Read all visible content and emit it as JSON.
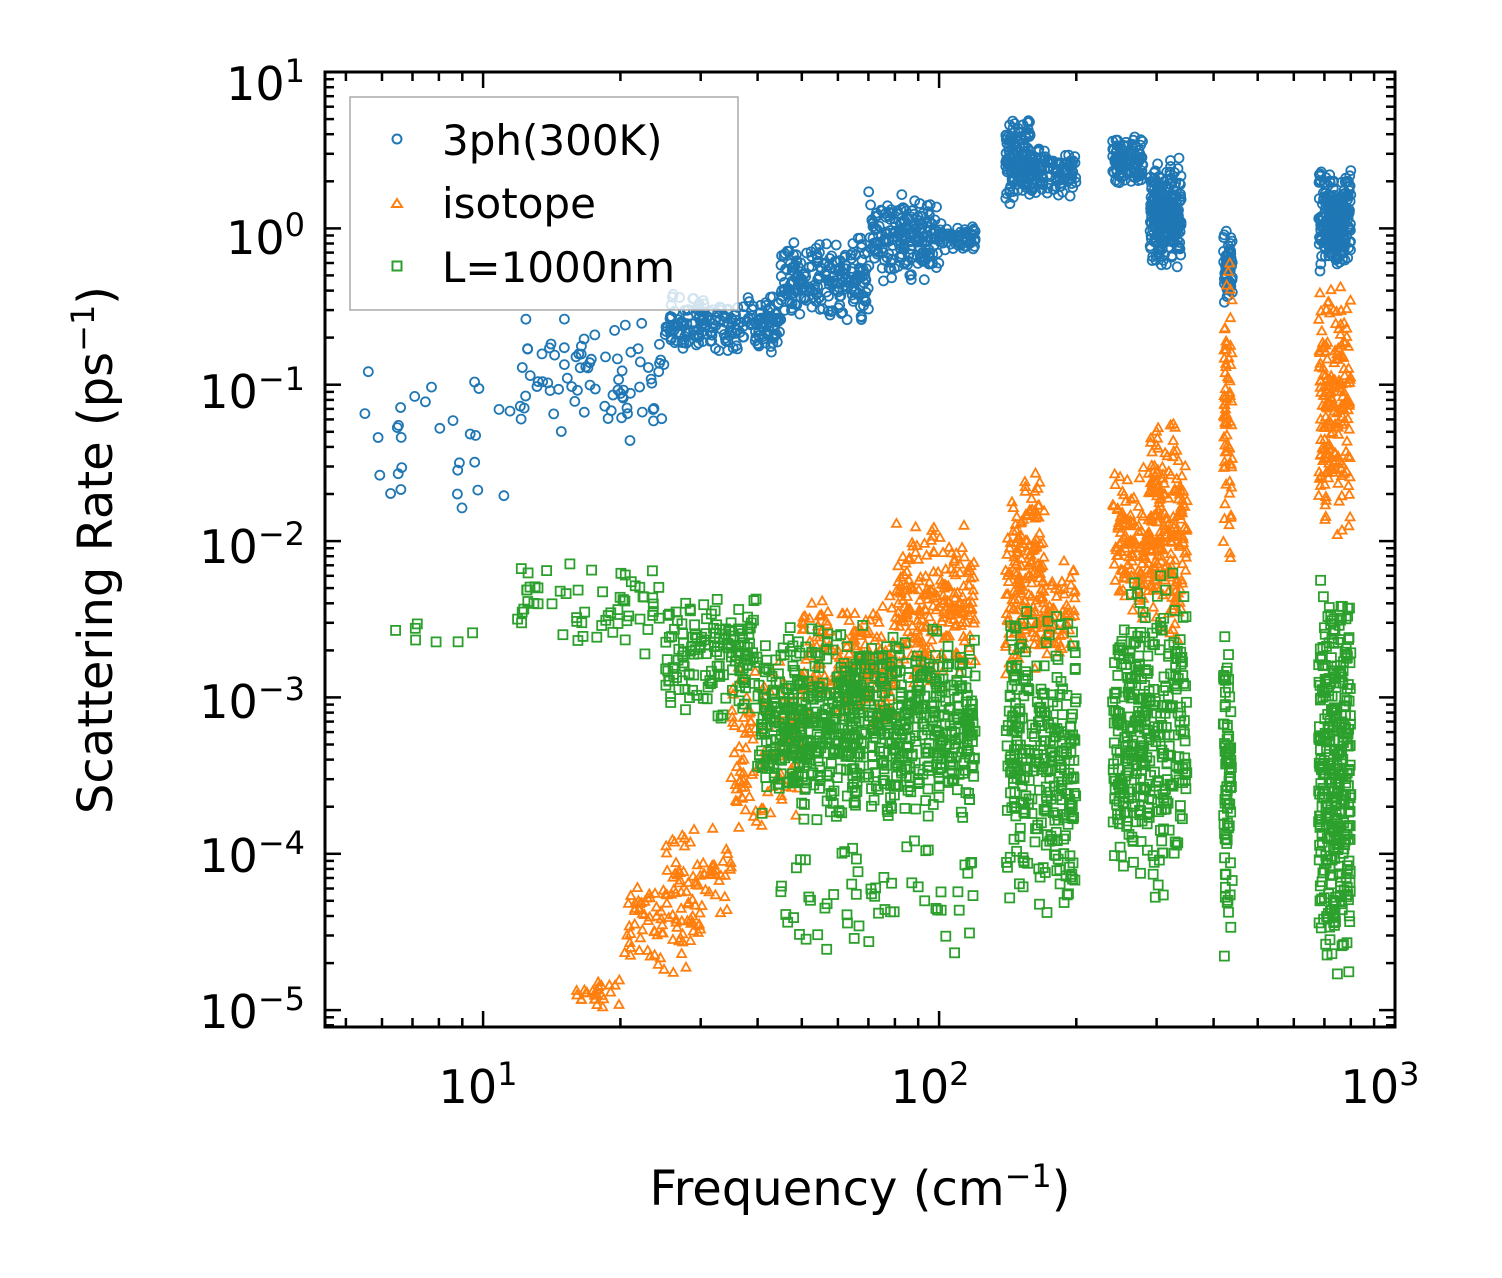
{
  "chart_data": {
    "type": "scatter",
    "x_scale": "log",
    "y_scale": "log",
    "xlim": [
      4.5,
      1000
    ],
    "ylim": [
      7.8e-06,
      10
    ],
    "xlabel": {
      "text": "Frequency (cm",
      "sup": "−1",
      "suffix": ")"
    },
    "ylabel": {
      "text": "Scattering Rate (ps",
      "sup": "−1",
      "suffix": ")"
    },
    "x_ticks": [
      {
        "value": 10,
        "base": "10",
        "exp": "1"
      },
      {
        "value": 100,
        "base": "10",
        "exp": "2"
      },
      {
        "value": 1000,
        "base": "10",
        "exp": "3"
      }
    ],
    "y_ticks": [
      {
        "value": 1e-05,
        "base": "10",
        "exp": "−5"
      },
      {
        "value": 0.0001,
        "base": "10",
        "exp": "−4"
      },
      {
        "value": 0.001,
        "base": "10",
        "exp": "−3"
      },
      {
        "value": 0.01,
        "base": "10",
        "exp": "−2"
      },
      {
        "value": 0.1,
        "base": "10",
        "exp": "−1"
      },
      {
        "value": 1,
        "base": "10",
        "exp": "0"
      },
      {
        "value": 10,
        "base": "10",
        "exp": "1"
      }
    ],
    "legend_position": "top-left",
    "series": [
      {
        "name": "3ph(300K)",
        "marker": "circle",
        "color": "#1f77b4",
        "clusters": [
          {
            "x": [
              5.5,
              12
            ],
            "y": [
              0.012,
              0.2
            ],
            "n": 30
          },
          {
            "x": [
              12,
              25
            ],
            "y": [
              0.04,
              0.3
            ],
            "n": 80
          },
          {
            "x": [
              25,
              45
            ],
            "y": [
              0.15,
              0.4
            ],
            "n": 220
          },
          {
            "x": [
              45,
              70
            ],
            "y": [
              0.25,
              0.9
            ],
            "n": 220
          },
          {
            "x": [
              70,
              100
            ],
            "y": [
              0.45,
              1.8
            ],
            "n": 200
          },
          {
            "x": [
              100,
              120
            ],
            "y": [
              0.7,
              1.1
            ],
            "n": 60
          },
          {
            "x": [
              140,
              160
            ],
            "y": [
              1.4,
              5.5
            ],
            "n": 150
          },
          {
            "x": [
              160,
              200
            ],
            "y": [
              1.5,
              3.5
            ],
            "n": 100
          },
          {
            "x": [
              240,
              280
            ],
            "y": [
              1.8,
              4.0
            ],
            "n": 120
          },
          {
            "x": [
              290,
              340
            ],
            "y": [
              0.55,
              3.0
            ],
            "n": 250
          },
          {
            "x": [
              420,
              440
            ],
            "y": [
              0.3,
              1.0
            ],
            "n": 60
          },
          {
            "x": [
              680,
              800
            ],
            "y": [
              0.5,
              2.5
            ],
            "n": 260
          }
        ]
      },
      {
        "name": "isotope",
        "marker": "triangle",
        "color": "#ff7f0e",
        "clusters": [
          {
            "x": [
              16,
              20
            ],
            "y": [
              1e-05,
              1.6e-05
            ],
            "n": 25
          },
          {
            "x": [
              20,
              30
            ],
            "y": [
              1.5e-05,
              8e-05
            ],
            "n": 80
          },
          {
            "x": [
              25,
              35
            ],
            "y": [
              4e-05,
              0.00015
            ],
            "n": 60
          },
          {
            "x": [
              35,
              50
            ],
            "y": [
              0.00012,
              0.002
            ],
            "n": 120
          },
          {
            "x": [
              50,
              80
            ],
            "y": [
              0.0006,
              0.005
            ],
            "n": 200
          },
          {
            "x": [
              80,
              120
            ],
            "y": [
              0.001,
              0.015
            ],
            "n": 220
          },
          {
            "x": [
              140,
              170
            ],
            "y": [
              0.0012,
              0.035
            ],
            "n": 180
          },
          {
            "x": [
              170,
              200
            ],
            "y": [
              0.0015,
              0.008
            ],
            "n": 60
          },
          {
            "x": [
              240,
              290
            ],
            "y": [
              0.003,
              0.03
            ],
            "n": 120
          },
          {
            "x": [
              290,
              350
            ],
            "y": [
              0.002,
              0.07
            ],
            "n": 200
          },
          {
            "x": [
              420,
              440
            ],
            "y": [
              0.005,
              0.7
            ],
            "n": 70
          },
          {
            "x": [
              680,
              800
            ],
            "y": [
              0.01,
              0.5
            ],
            "n": 200
          }
        ]
      },
      {
        "name": "L=1000nm",
        "marker": "square",
        "color": "#2ca02c",
        "clusters": [
          {
            "x": [
              5.5,
              12
            ],
            "y": [
              0.002,
              0.0035
            ],
            "n": 8
          },
          {
            "x": [
              12,
              25
            ],
            "y": [
              0.0018,
              0.008
            ],
            "n": 60
          },
          {
            "x": [
              25,
              40
            ],
            "y": [
              0.0007,
              0.005
            ],
            "n": 150
          },
          {
            "x": [
              40,
              120
            ],
            "y": [
              0.00015,
              0.003
            ],
            "n": 800
          },
          {
            "x": [
              45,
              120
            ],
            "y": [
              2e-05,
              0.00015
            ],
            "n": 60
          },
          {
            "x": [
              140,
              200
            ],
            "y": [
              4e-05,
              0.005
            ],
            "n": 300
          },
          {
            "x": [
              240,
              350
            ],
            "y": [
              5e-05,
              0.007
            ],
            "n": 350
          },
          {
            "x": [
              420,
              440
            ],
            "y": [
              1.5e-05,
              0.004
            ],
            "n": 80
          },
          {
            "x": [
              680,
              800
            ],
            "y": [
              1.5e-05,
              0.006
            ],
            "n": 350
          }
        ]
      }
    ]
  }
}
